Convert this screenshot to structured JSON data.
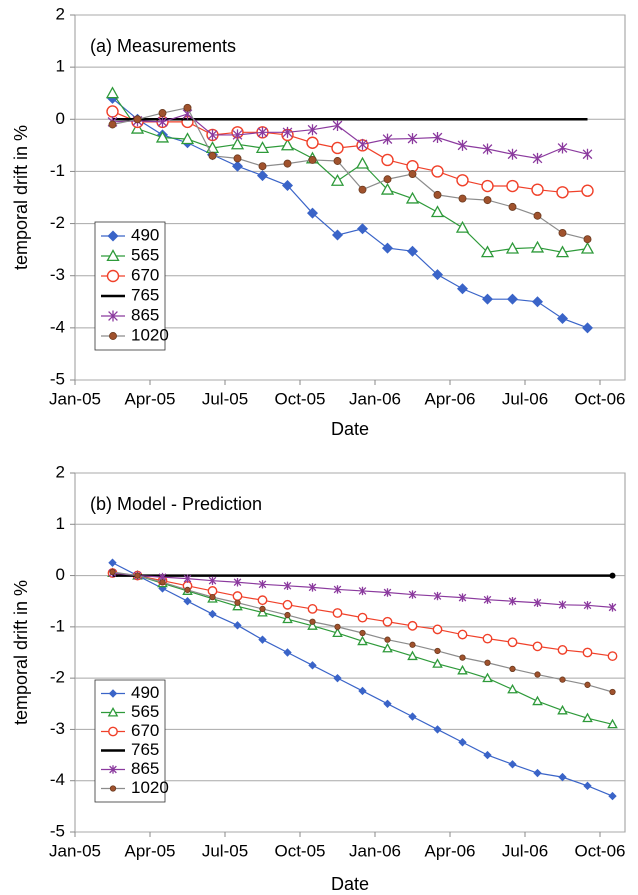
{
  "chart_data": [
    {
      "type": "line",
      "title": "(a) Measurements",
      "x_label": "Date",
      "y_label": "temporal drift in %",
      "x": [
        "2005-02",
        "2005-03",
        "2005-04",
        "2005-05",
        "2005-06",
        "2005-07",
        "2005-08",
        "2005-09",
        "2005-10",
        "2005-11",
        "2005-12",
        "2006-01",
        "2006-02",
        "2006-03",
        "2006-04",
        "2006-05",
        "2006-06",
        "2006-07",
        "2006-08",
        "2006-09"
      ],
      "xlim": [
        "2005-01",
        "2006-11"
      ],
      "xticks": [
        {
          "value": "2005-01",
          "label": "Jan-05"
        },
        {
          "value": "2005-04",
          "label": "Apr-05"
        },
        {
          "value": "2005-07",
          "label": "Jul-05"
        },
        {
          "value": "2005-10",
          "label": "Oct-05"
        },
        {
          "value": "2006-01",
          "label": "Jan-06"
        },
        {
          "value": "2006-04",
          "label": "Apr-06"
        },
        {
          "value": "2006-07",
          "label": "Jul-06"
        },
        {
          "value": "2006-10",
          "label": "Oct-06"
        }
      ],
      "ylim": [
        -5,
        2
      ],
      "yticks": [
        -5,
        -4,
        -3,
        -2,
        -1,
        0,
        1,
        2
      ],
      "grid": true,
      "legend": "lower left",
      "series": [
        {
          "name": "490",
          "color": "#3a64c8",
          "marker": "diamond",
          "values": [
            0.4,
            0.0,
            -0.3,
            -0.45,
            -0.68,
            -0.9,
            -1.08,
            -1.27,
            -1.8,
            -2.22,
            -2.1,
            -2.47,
            -2.53,
            -2.98,
            -3.25,
            -3.45,
            -3.45,
            -3.5,
            -3.82,
            -4.0
          ]
        },
        {
          "name": "565",
          "color": "#2e9a3a",
          "marker": "triangle",
          "values": [
            0.5,
            -0.18,
            -0.35,
            -0.38,
            -0.55,
            -0.48,
            -0.55,
            -0.5,
            -0.75,
            -1.18,
            -0.85,
            -1.35,
            -1.52,
            -1.78,
            -2.08,
            -2.55,
            -2.48,
            -2.46,
            -2.55,
            -2.48
          ]
        },
        {
          "name": "670",
          "color": "#f0412a",
          "marker": "circle",
          "values": [
            0.15,
            -0.05,
            -0.05,
            -0.05,
            -0.3,
            -0.25,
            -0.25,
            -0.3,
            -0.45,
            -0.55,
            -0.5,
            -0.78,
            -0.9,
            -1.0,
            -1.17,
            -1.28,
            -1.28,
            -1.35,
            -1.4,
            -1.37
          ]
        },
        {
          "name": "765",
          "color": "#000000",
          "marker": "none",
          "values": [
            0,
            0,
            0,
            0,
            0,
            0,
            0,
            0,
            0,
            0,
            0,
            0,
            0,
            0,
            0,
            0,
            0,
            0,
            0,
            0
          ]
        },
        {
          "name": "865",
          "color": "#8b3a9e",
          "marker": "star",
          "values": [
            -0.05,
            -0.03,
            -0.05,
            0.1,
            -0.3,
            -0.3,
            -0.25,
            -0.25,
            -0.2,
            -0.12,
            -0.48,
            -0.38,
            -0.37,
            -0.35,
            -0.5,
            -0.57,
            -0.67,
            -0.75,
            -0.55,
            -0.67
          ]
        },
        {
          "name": "1020",
          "color": "#8c8c8c",
          "marker": "dot",
          "values": [
            -0.1,
            0.0,
            0.12,
            0.22,
            -0.7,
            -0.75,
            -0.9,
            -0.85,
            -0.78,
            -0.8,
            -1.35,
            -1.15,
            -1.05,
            -1.45,
            -1.52,
            -1.55,
            -1.68,
            -1.85,
            -2.18,
            -2.3
          ]
        }
      ]
    },
    {
      "type": "line",
      "title": "(b) Model - Prediction",
      "x_label": "Date",
      "y_label": "temporal drift in %",
      "x": [
        "2005-02",
        "2005-03",
        "2005-04",
        "2005-05",
        "2005-06",
        "2005-07",
        "2005-08",
        "2005-09",
        "2005-10",
        "2005-11",
        "2005-12",
        "2006-01",
        "2006-02",
        "2006-03",
        "2006-04",
        "2006-05",
        "2006-06",
        "2006-07",
        "2006-08",
        "2006-09",
        "2006-10"
      ],
      "xlim": [
        "2005-01",
        "2006-11"
      ],
      "xticks": [
        {
          "value": "2005-01",
          "label": "Jan-05"
        },
        {
          "value": "2005-04",
          "label": "Apr-05"
        },
        {
          "value": "2005-07",
          "label": "Jul-05"
        },
        {
          "value": "2005-10",
          "label": "Oct-05"
        },
        {
          "value": "2006-01",
          "label": "Jan-06"
        },
        {
          "value": "2006-04",
          "label": "Apr-06"
        },
        {
          "value": "2006-07",
          "label": "Jul-06"
        },
        {
          "value": "2006-10",
          "label": "Oct-06"
        }
      ],
      "ylim": [
        -5,
        2
      ],
      "yticks": [
        -5,
        -4,
        -3,
        -2,
        -1,
        0,
        1,
        2
      ],
      "grid": true,
      "legend": "lower left",
      "series": [
        {
          "name": "490",
          "color": "#3a64c8",
          "marker": "diamond",
          "values": [
            0.25,
            0.0,
            -0.25,
            -0.5,
            -0.75,
            -0.97,
            -1.25,
            -1.5,
            -1.75,
            -2.0,
            -2.25,
            -2.5,
            -2.75,
            -3.0,
            -3.25,
            -3.5,
            -3.68,
            -3.85,
            -3.93,
            -4.1,
            -4.3
          ]
        },
        {
          "name": "565",
          "color": "#2e9a3a",
          "marker": "triangle",
          "values": [
            0.05,
            0.0,
            -0.15,
            -0.3,
            -0.45,
            -0.6,
            -0.72,
            -0.85,
            -0.98,
            -1.12,
            -1.28,
            -1.42,
            -1.57,
            -1.72,
            -1.85,
            -2.0,
            -2.22,
            -2.45,
            -2.63,
            -2.78,
            -2.9
          ]
        },
        {
          "name": "670",
          "color": "#f0412a",
          "marker": "circle",
          "values": [
            0.05,
            0.0,
            -0.1,
            -0.2,
            -0.3,
            -0.4,
            -0.48,
            -0.57,
            -0.65,
            -0.73,
            -0.82,
            -0.9,
            -0.98,
            -1.05,
            -1.15,
            -1.23,
            -1.3,
            -1.38,
            -1.45,
            -1.5,
            -1.57
          ]
        },
        {
          "name": "765",
          "color": "#000000",
          "marker": "none",
          "values": [
            0,
            0,
            0,
            0,
            0,
            0,
            0,
            0,
            0,
            0,
            0,
            0,
            0,
            0,
            0,
            0,
            0,
            0,
            0,
            0,
            0
          ]
        },
        {
          "name": "865",
          "color": "#8b3a9e",
          "marker": "star",
          "values": [
            0.05,
            0.0,
            -0.03,
            -0.06,
            -0.1,
            -0.13,
            -0.17,
            -0.2,
            -0.23,
            -0.27,
            -0.3,
            -0.33,
            -0.37,
            -0.4,
            -0.43,
            -0.47,
            -0.5,
            -0.53,
            -0.57,
            -0.58,
            -0.62
          ]
        },
        {
          "name": "1020",
          "color": "#8c8c8c",
          "marker": "dot",
          "values": [
            0.07,
            0.0,
            -0.13,
            -0.28,
            -0.42,
            -0.53,
            -0.65,
            -0.77,
            -0.9,
            -1.0,
            -1.12,
            -1.25,
            -1.35,
            -1.47,
            -1.6,
            -1.7,
            -1.82,
            -1.93,
            -2.03,
            -2.13,
            -2.27
          ]
        }
      ]
    }
  ]
}
